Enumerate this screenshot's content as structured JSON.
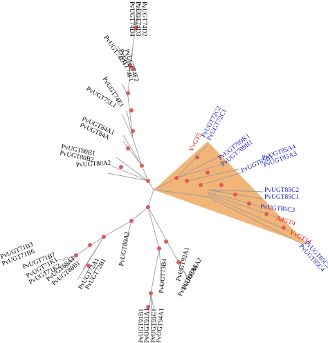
{
  "colors": {
    "clade_fill": "#f0a860",
    "node": "#e05a5a",
    "label_black": "#000000",
    "label_red": "#e01818",
    "label_blue": "#1a1ad0"
  },
  "labels": {
    "ugt74d2": "PvUGT74D2",
    "ugt74d3": "PvUGT74D3",
    "ugt74d4": "PvUGT74D4",
    "ugt74d1": "PvUGT74D1",
    "ugt74f": "PvUGT74F1",
    "ugt74f2": "PvUGT74F2",
    "ugt74e1": "PvUGT74E1",
    "ugt75l1": "PvUGT75L1",
    "ugt84a1": "PvUGT84A1",
    "ugt84a": "PvUGT84A",
    "ugt80b1": "PvUGT80B1",
    "ugt80b2": "PvUGT80B2",
    "ugt80a2": "PvUGT80A2",
    "vvgt5": "VvGT5",
    "ugt72c2": "PvUGT72C2",
    "ugt72c1": "PvUGT72C1",
    "ugt709k1": "PvUGT709K1",
    "ugt709h1": "PvUGT709H1",
    "ugt85b1": "PvUGT85B1",
    "ugt85a4": "PvUGT85A4",
    "ugt85a3": "PvUGT85A3",
    "ugt85c2": "PvUGT85C2",
    "ugt85c1": "PvUGT85C1",
    "ugt85c3": "PvUGT85C3",
    "adgt4": "AdGT4",
    "vvgt14": "VvGT14",
    "ugt85c5": "PvUGT85C5",
    "ugt85c4": "PvUGT85C4",
    "ugt71b3": "PvUGT71B3",
    "ugt71b6": "PvUGT71B6",
    "ugt71b7": "PvUGT71B7",
    "ugt71k1": "PvUGT71K1",
    "ugt71k2": "PvUGT71K2",
    "ugt88a1": "PvUGT88A1",
    "ugt88b1": "PvUGT88B1",
    "ugt72a1": "PvUGT72A1",
    "ugt72b1": "PvUGT72B1",
    "ugt80a": "PvUGT80A2",
    "ugt73b4": "PvUGT73B4",
    "ugt94a1": "PvUGT94A1",
    "ugt91c1": "PvUGT91C1",
    "ugt91a1": "PvUGT91A1",
    "ugt91b1": "PvUGT91B1",
    "ugt92a1": "PvUGT92A1",
    "ugt86a1": "PvUGT86A1",
    "ugt86a2": "PvUGT86A2"
  }
}
